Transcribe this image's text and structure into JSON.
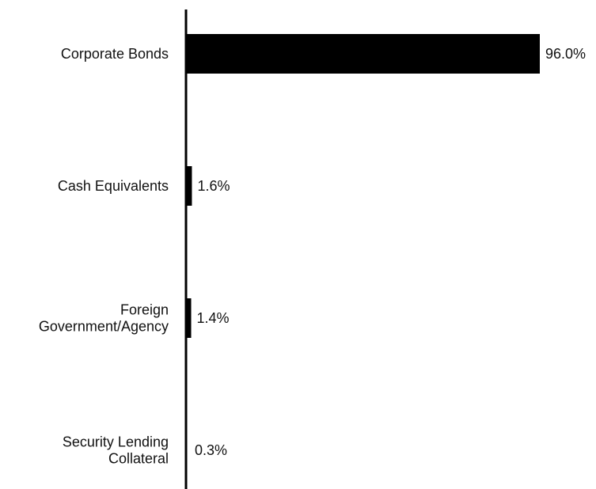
{
  "chart_data": {
    "type": "bar",
    "orientation": "horizontal",
    "categories": [
      [
        "Corporate Bonds"
      ],
      [
        "Cash Equivalents"
      ],
      [
        "Foreign",
        "Government/Agency"
      ],
      [
        "Security Lending",
        "Collateral"
      ]
    ],
    "values": [
      96.0,
      1.6,
      1.4,
      0.3
    ],
    "value_labels": [
      "96.0%",
      "1.6%",
      "1.4%",
      "0.3%"
    ],
    "xlim": [
      0,
      96.0
    ],
    "grid": false,
    "legend": "none",
    "title": "",
    "xlabel": "",
    "ylabel": "",
    "colors": {
      "bar": "#000000",
      "axis": "#000000",
      "text": "#111111"
    }
  }
}
